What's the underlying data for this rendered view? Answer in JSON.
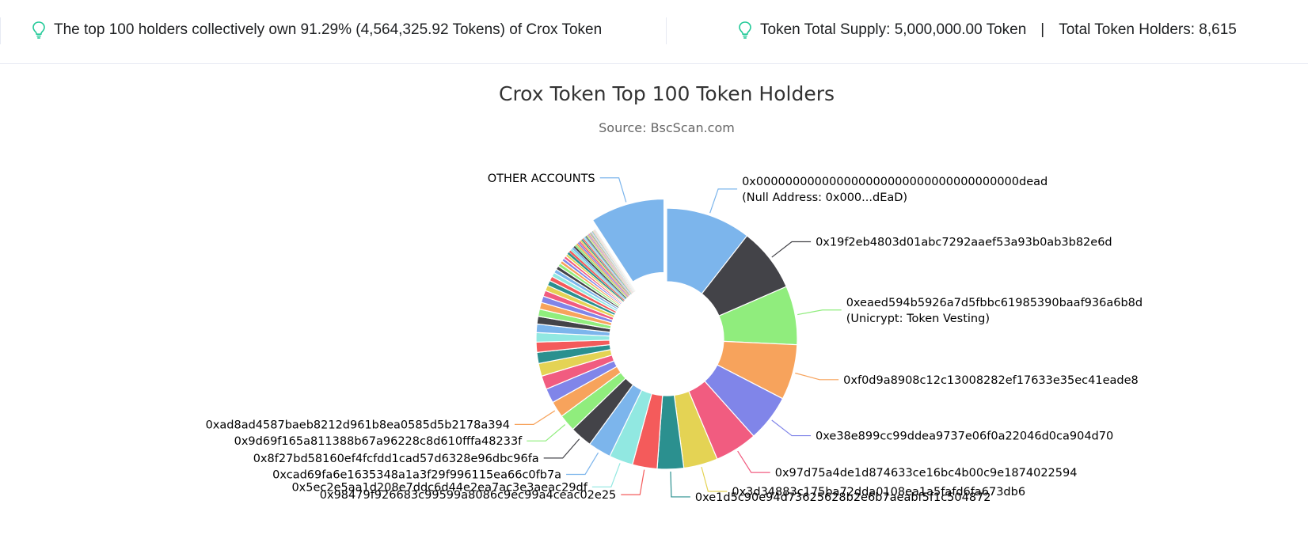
{
  "info_bar": {
    "left_text": "The top 100 holders collectively own 91.29% (4,564,325.92 Tokens) of Crox Token",
    "supply_text": "Token Total Supply: 5,000,000.00 Token",
    "separator": "|",
    "holders_text": "Total Token Holders: 8,615",
    "icon": "lightbulb-icon",
    "icon_color": "#20c997"
  },
  "chart_data": {
    "type": "pie",
    "variant": "donut",
    "title": "Crox Token Top 100 Token Holders",
    "subtitle": "Source: BscScan.com",
    "legend": "none",
    "slices": [
      {
        "name": "0x000000000000000000000000000000000000dead",
        "subname": "(Null Address: 0x000...dEaD)",
        "value": 10.0,
        "color": "#7cb5ec",
        "labeled": true
      },
      {
        "name": "0x19f2eb4803d01abc7292aaef53a93b0ab3b82e6d",
        "value": 7.5,
        "color": "#434348",
        "labeled": true
      },
      {
        "name": "0xeaed594b5926a7d5fbbc61985390baaf936a6b8d",
        "subname": "(Unicrypt: Token Vesting)",
        "value": 6.9,
        "color": "#90ed7d",
        "labeled": true
      },
      {
        "name": "0xf0d9a8908c12c13008282ef17633e35ec41eade8",
        "value": 6.5,
        "color": "#f7a35c",
        "labeled": true
      },
      {
        "name": "0xe38e899cc99ddea9737e06f0a22046d0ca904d70",
        "value": 5.5,
        "color": "#8085e9",
        "labeled": true
      },
      {
        "name": "0x97d75a4de1d874633ce16bc4b00c9e1874022594",
        "value": 5.0,
        "color": "#f15c80",
        "labeled": true
      },
      {
        "name": "0x3d34883c175ba72dda0108ea1a5fafd6fa673db6",
        "value": 4.0,
        "color": "#e4d354",
        "labeled": true
      },
      {
        "name": "0xe1d5c90e94d73625628b2e6b7aeabf5f1c504872",
        "value": 3.1,
        "color": "#2b908f",
        "labeled": true
      },
      {
        "name": "0x98479f926683c99599a8086c9ec99a4ceac02e25",
        "value": 2.9,
        "color": "#f45b5b",
        "labeled": true
      },
      {
        "name": "0x5ec2e5aa1d208e7ddc6d44e2ea7ac3e3aeac29df",
        "value": 2.8,
        "color": "#91e8e1",
        "labeled": true
      },
      {
        "name": "0xcad69fa6e1635348a1a3f29f996115ea66c0fb7a",
        "value": 2.7,
        "color": "#7cb5ec",
        "labeled": true
      },
      {
        "name": "0x8f27bd58160ef4fcfdd1cad57d6328e96dbc96fa",
        "value": 2.6,
        "color": "#434348",
        "labeled": true
      },
      {
        "name": "0x9d69f165a811388b67a96228c8d610fffa48233f",
        "value": 2.0,
        "color": "#90ed7d",
        "labeled": true
      },
      {
        "name": "0xad8ad4587baeb8212d961b8ea0585d5b2178a394",
        "value": 1.9,
        "color": "#f7a35c",
        "labeled": true
      },
      {
        "name": "",
        "value": 1.7,
        "color": "#8085e9",
        "labeled": false
      },
      {
        "name": "",
        "value": 1.6,
        "color": "#f15c80",
        "labeled": false
      },
      {
        "name": "",
        "value": 1.5,
        "color": "#e4d354",
        "labeled": false
      },
      {
        "name": "",
        "value": 1.3,
        "color": "#2b908f",
        "labeled": false
      },
      {
        "name": "",
        "value": 1.2,
        "color": "#f45b5b",
        "labeled": false
      },
      {
        "name": "",
        "value": 1.1,
        "color": "#91e8e1",
        "labeled": false
      },
      {
        "name": "",
        "value": 1.0,
        "color": "#7cb5ec",
        "labeled": false
      },
      {
        "name": "",
        "value": 0.9,
        "color": "#434348",
        "labeled": false
      },
      {
        "name": "",
        "value": 0.85,
        "color": "#90ed7d",
        "labeled": false
      },
      {
        "name": "",
        "value": 0.8,
        "color": "#f7a35c",
        "labeled": false
      },
      {
        "name": "",
        "value": 0.75,
        "color": "#8085e9",
        "labeled": false
      },
      {
        "name": "",
        "value": 0.7,
        "color": "#f15c80",
        "labeled": false
      },
      {
        "name": "",
        "value": 0.65,
        "color": "#e4d354",
        "labeled": false
      },
      {
        "name": "",
        "value": 0.6,
        "color": "#2b908f",
        "labeled": false
      },
      {
        "name": "",
        "value": 0.55,
        "color": "#f45b5b",
        "labeled": false
      },
      {
        "name": "",
        "value": 0.5,
        "color": "#91e8e1",
        "labeled": false
      },
      {
        "name": "",
        "value": 0.46,
        "color": "#7cb5ec",
        "labeled": false
      },
      {
        "name": "",
        "value": 0.43,
        "color": "#434348",
        "labeled": false
      },
      {
        "name": "",
        "value": 0.4,
        "color": "#90ed7d",
        "labeled": false
      },
      {
        "name": "",
        "value": 0.37,
        "color": "#f7a35c",
        "labeled": false
      },
      {
        "name": "",
        "value": 0.35,
        "color": "#8085e9",
        "labeled": false
      },
      {
        "name": "",
        "value": 0.33,
        "color": "#f15c80",
        "labeled": false
      },
      {
        "name": "",
        "value": 0.31,
        "color": "#e4d354",
        "labeled": false
      },
      {
        "name": "",
        "value": 0.29,
        "color": "#2b908f",
        "labeled": false
      },
      {
        "name": "",
        "value": 0.27,
        "color": "#f45b5b",
        "labeled": false
      },
      {
        "name": "",
        "value": 0.25,
        "color": "#91e8e1",
        "labeled": false
      },
      {
        "name": "",
        "value": 0.24,
        "color": "#7cb5ec",
        "labeled": false
      },
      {
        "name": "",
        "value": 0.23,
        "color": "#434348",
        "labeled": false
      },
      {
        "name": "",
        "value": 0.22,
        "color": "#90ed7d",
        "labeled": false
      },
      {
        "name": "",
        "value": 0.21,
        "color": "#f7a35c",
        "labeled": false
      },
      {
        "name": "",
        "value": 0.2,
        "color": "#8085e9",
        "labeled": false
      },
      {
        "name": "",
        "value": 0.19,
        "color": "#f15c80",
        "labeled": false
      },
      {
        "name": "",
        "value": 0.18,
        "color": "#e4d354",
        "labeled": false
      },
      {
        "name": "",
        "value": 0.17,
        "color": "#2b908f",
        "labeled": false
      },
      {
        "name": "",
        "value": 0.16,
        "color": "#f45b5b",
        "labeled": false
      },
      {
        "name": "",
        "value": 0.15,
        "color": "#91e8e1",
        "labeled": false
      },
      {
        "name": "",
        "value": 0.14,
        "color": "#7cb5ec",
        "labeled": false
      },
      {
        "name": "",
        "value": 0.13,
        "color": "#434348",
        "labeled": false
      },
      {
        "name": "",
        "value": 0.12,
        "color": "#90ed7d",
        "labeled": false
      },
      {
        "name": "",
        "value": 0.11,
        "color": "#f7a35c",
        "labeled": false
      },
      {
        "name": "",
        "value": 0.1,
        "color": "#8085e9",
        "labeled": false
      },
      {
        "name": "",
        "value": 0.1,
        "color": "#f15c80",
        "labeled": false
      },
      {
        "name": "",
        "value": 0.09,
        "color": "#e4d354",
        "labeled": false
      },
      {
        "name": "",
        "value": 0.09,
        "color": "#2b908f",
        "labeled": false
      },
      {
        "name": "",
        "value": 0.08,
        "color": "#f45b5b",
        "labeled": false
      },
      {
        "name": "",
        "value": 0.08,
        "color": "#91e8e1",
        "labeled": false
      },
      {
        "name": "",
        "value": 0.07,
        "color": "#7cb5ec",
        "labeled": false
      },
      {
        "name": "",
        "value": 0.07,
        "color": "#434348",
        "labeled": false
      },
      {
        "name": "",
        "value": 0.06,
        "color": "#90ed7d",
        "labeled": false
      },
      {
        "name": "",
        "value": 0.06,
        "color": "#f7a35c",
        "labeled": false
      },
      {
        "name": "",
        "value": 0.05,
        "color": "#8085e9",
        "labeled": false
      },
      {
        "name": "",
        "value": 0.05,
        "color": "#f15c80",
        "labeled": false
      },
      {
        "name": "",
        "value": 0.05,
        "color": "#e4d354",
        "labeled": false
      },
      {
        "name": "",
        "value": 0.04,
        "color": "#2b908f",
        "labeled": false
      },
      {
        "name": "",
        "value": 0.04,
        "color": "#f45b5b",
        "labeled": false
      },
      {
        "name": "",
        "value": 0.04,
        "color": "#91e8e1",
        "labeled": false
      },
      {
        "name": "OTHER ACCOUNTS",
        "value": 8.71,
        "color": "#7cb5ec",
        "labeled": true,
        "sliced": true
      }
    ]
  }
}
